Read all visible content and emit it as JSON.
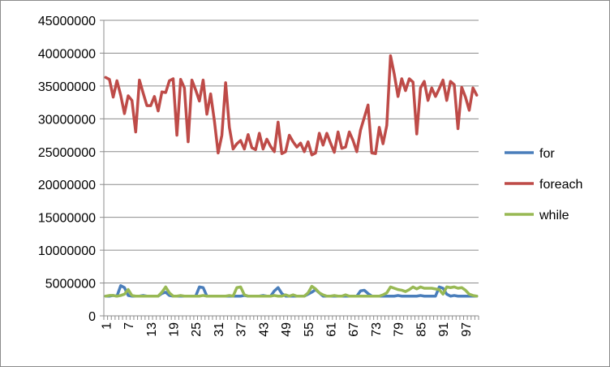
{
  "chart_data": {
    "type": "line",
    "title": "",
    "xlabel": "",
    "ylabel": "",
    "ylim": [
      0,
      45000000
    ],
    "yticks": [
      0,
      5000000,
      10000000,
      15000000,
      20000000,
      25000000,
      30000000,
      35000000,
      40000000,
      45000000
    ],
    "ytick_labels": [
      "0",
      "5000000",
      "10000000",
      "15000000",
      "20000000",
      "25000000",
      "30000000",
      "35000000",
      "40000000",
      "45000000"
    ],
    "x": [
      1,
      2,
      3,
      4,
      5,
      6,
      7,
      8,
      9,
      10,
      11,
      12,
      13,
      14,
      15,
      16,
      17,
      18,
      19,
      20,
      21,
      22,
      23,
      24,
      25,
      26,
      27,
      28,
      29,
      30,
      31,
      32,
      33,
      34,
      35,
      36,
      37,
      38,
      39,
      40,
      41,
      42,
      43,
      44,
      45,
      46,
      47,
      48,
      49,
      50,
      51,
      52,
      53,
      54,
      55,
      56,
      57,
      58,
      59,
      60,
      61,
      62,
      63,
      64,
      65,
      66,
      67,
      68,
      69,
      70,
      71,
      72,
      73,
      74,
      75,
      76,
      77,
      78,
      79,
      80,
      81,
      82,
      83,
      84,
      85,
      86,
      87,
      88,
      89,
      90,
      91,
      92,
      93,
      94,
      95,
      96,
      97,
      98,
      99,
      100
    ],
    "xtick_labels": [
      "1",
      "7",
      "13",
      "19",
      "25",
      "31",
      "37",
      "43",
      "49",
      "55",
      "61",
      "67",
      "73",
      "79",
      "85",
      "91",
      "97"
    ],
    "grid": "horizontal",
    "legend_position": "right",
    "series": [
      {
        "name": "for",
        "color": "#4a7ebb",
        "values": [
          3000000,
          3000000,
          3100000,
          3000000,
          4600000,
          4300000,
          3100000,
          3000000,
          3000000,
          3000000,
          3100000,
          3000000,
          3000000,
          3000000,
          3000000,
          3400000,
          3600000,
          3100000,
          3000000,
          3000000,
          3000000,
          3000000,
          3000000,
          3000000,
          3000000,
          4400000,
          4300000,
          3000000,
          3000000,
          3000000,
          3000000,
          3000000,
          3000000,
          3000000,
          3000000,
          3000000,
          3000000,
          3100000,
          3000000,
          3000000,
          3000000,
          3000000,
          3100000,
          3000000,
          3000000,
          3800000,
          4300000,
          3400000,
          3000000,
          3000000,
          3000000,
          3000000,
          3000000,
          3000000,
          3300000,
          3600000,
          4000000,
          3500000,
          3000000,
          3000000,
          3000000,
          3000000,
          3000000,
          3000000,
          3000000,
          3000000,
          3000000,
          3000000,
          3800000,
          3900000,
          3400000,
          3000000,
          3000000,
          3000000,
          3000000,
          3000000,
          3000000,
          3000000,
          3100000,
          3000000,
          3000000,
          3000000,
          3000000,
          3000000,
          3100000,
          3000000,
          3000000,
          3000000,
          3000000,
          4400000,
          4200000,
          3300000,
          3000000,
          3100000,
          3000000,
          3000000,
          3000000,
          3000000,
          3000000,
          3000000
        ]
      },
      {
        "name": "foreach",
        "color": "#be4b48",
        "values": [
          36300000,
          36000000,
          33300000,
          35800000,
          33600000,
          30800000,
          33500000,
          32800000,
          28000000,
          35900000,
          33900000,
          32000000,
          32000000,
          33400000,
          31200000,
          34100000,
          34000000,
          35800000,
          36100000,
          27500000,
          36000000,
          34700000,
          26500000,
          35900000,
          34400000,
          32700000,
          35900000,
          30700000,
          33800000,
          29700000,
          24800000,
          27500000,
          35500000,
          28700000,
          25400000,
          26200000,
          26700000,
          25400000,
          27600000,
          25600000,
          25300000,
          27800000,
          25400000,
          26900000,
          25800000,
          25000000,
          29500000,
          24700000,
          25000000,
          27500000,
          26500000,
          25700000,
          26300000,
          25000000,
          26500000,
          24500000,
          24800000,
          27800000,
          26000000,
          27800000,
          26300000,
          24900000,
          28000000,
          25500000,
          25700000,
          28000000,
          26700000,
          25000000,
          28300000,
          30200000,
          32100000,
          24800000,
          24700000,
          28700000,
          26200000,
          29000000,
          39600000,
          36800000,
          33400000,
          36100000,
          34300000,
          36100000,
          35600000,
          27700000,
          34700000,
          35700000,
          32800000,
          34700000,
          33400000,
          34600000,
          35900000,
          32800000,
          35700000,
          35200000,
          28500000,
          34800000,
          33300000,
          31300000,
          34700000,
          33600000
        ]
      },
      {
        "name": "while",
        "color": "#98b954",
        "values": [
          3000000,
          3100000,
          3100000,
          3000000,
          3100000,
          3300000,
          4000000,
          3100000,
          3000000,
          3000000,
          3000000,
          3000000,
          3000000,
          3000000,
          3000000,
          3600000,
          4400000,
          3500000,
          3000000,
          3000000,
          3100000,
          3000000,
          3000000,
          3000000,
          3000000,
          3000000,
          3100000,
          3000000,
          3000000,
          3000000,
          3000000,
          3000000,
          3000000,
          3100000,
          3000000,
          4300000,
          4400000,
          3200000,
          3000000,
          3000000,
          3000000,
          3000000,
          3000000,
          3000000,
          3000000,
          3100000,
          3000000,
          3000000,
          3200000,
          3000000,
          3200000,
          3000000,
          3000000,
          3000000,
          3500000,
          4500000,
          4100000,
          3500000,
          3200000,
          3000000,
          3000000,
          3100000,
          3000000,
          3000000,
          3200000,
          3000000,
          3000000,
          3000000,
          3000000,
          3000000,
          3000000,
          3000000,
          3000000,
          3000000,
          3200000,
          3500000,
          4400000,
          4200000,
          4000000,
          3900000,
          3700000,
          4000000,
          4400000,
          4100000,
          4400000,
          4200000,
          4200000,
          4200000,
          4100000,
          4000000,
          3300000,
          4400000,
          4300000,
          4400000,
          4200000,
          4300000,
          3900000,
          3300000,
          3100000,
          3000000
        ]
      }
    ]
  }
}
